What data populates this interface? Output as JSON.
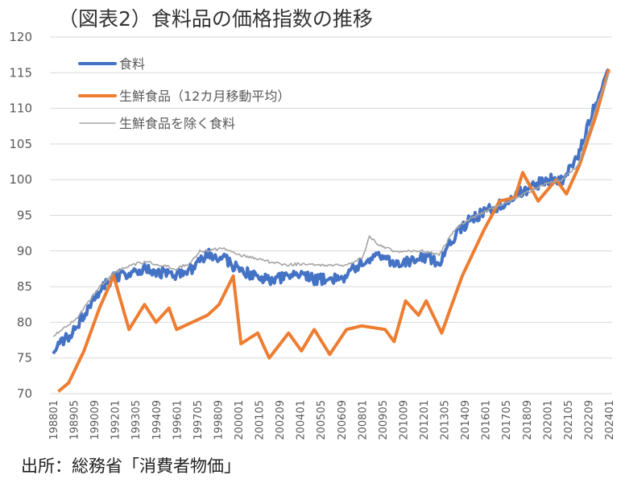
{
  "title": "（図表2）食料品の価格指数の推移",
  "source": "出所：総務省「消費者物価」",
  "chart_data": {
    "type": "line",
    "title": "（図表2）食料品の価格指数の推移",
    "ylim": [
      70,
      120
    ],
    "yticks": [
      70,
      75,
      80,
      85,
      90,
      95,
      100,
      105,
      110,
      115,
      120
    ],
    "xticks": [
      "198801",
      "198905",
      "199009",
      "199201",
      "199305",
      "199409",
      "199601",
      "199705",
      "199809",
      "200001",
      "200105",
      "200209",
      "200401",
      "200505",
      "200609",
      "200801",
      "200905",
      "201009",
      "201201",
      "201305",
      "201409",
      "201601",
      "201705",
      "201809",
      "202001",
      "202105",
      "202209",
      "202401"
    ],
    "xrange": [
      "198801",
      "202402"
    ],
    "grid": true,
    "legend": "top-left",
    "series": [
      {
        "name": "食料",
        "color": "#4472C4",
        "points": [
          [
            "198801",
            76
          ],
          [
            "198901",
            78
          ],
          [
            "199001",
            81
          ],
          [
            "199101",
            84.5
          ],
          [
            "199201",
            86.5
          ],
          [
            "199301",
            87
          ],
          [
            "199401",
            87.5
          ],
          [
            "199501",
            87
          ],
          [
            "199601",
            86.5
          ],
          [
            "199701",
            87.5
          ],
          [
            "199801",
            89.5
          ],
          [
            "199901",
            89
          ],
          [
            "200001",
            87.5
          ],
          [
            "200101",
            86.5
          ],
          [
            "200201",
            86
          ],
          [
            "200301",
            86.2
          ],
          [
            "200401",
            86.5
          ],
          [
            "200501",
            86
          ],
          [
            "200601",
            86
          ],
          [
            "200701",
            86.5
          ],
          [
            "200801",
            88.5
          ],
          [
            "200901",
            89.5
          ],
          [
            "201001",
            88.5
          ],
          [
            "201101",
            88.5
          ],
          [
            "201201",
            89
          ],
          [
            "201301",
            88.5
          ],
          [
            "201401",
            92
          ],
          [
            "201501",
            94.5
          ],
          [
            "201601",
            95.5
          ],
          [
            "201701",
            96.5
          ],
          [
            "201801",
            98
          ],
          [
            "201901",
            99
          ],
          [
            "202001",
            100
          ],
          [
            "202101",
            100
          ],
          [
            "202201",
            103
          ],
          [
            "202301",
            110
          ],
          [
            "202401",
            115.5
          ]
        ]
      },
      {
        "name": "生鮮食品（12カ月移動平均）",
        "color": "#ED7D31",
        "points": [
          [
            "198805",
            70.3
          ],
          [
            "198901",
            71.5
          ],
          [
            "199001",
            76
          ],
          [
            "199101",
            82
          ],
          [
            "199112",
            86.5
          ],
          [
            "199212",
            79
          ],
          [
            "199312",
            82.5
          ],
          [
            "199409",
            80
          ],
          [
            "199507",
            82
          ],
          [
            "199601",
            79
          ],
          [
            "199701",
            80
          ],
          [
            "199801",
            81
          ],
          [
            "199810",
            82.5
          ],
          [
            "199909",
            86.5
          ],
          [
            "200003",
            77
          ],
          [
            "200104",
            78.5
          ],
          [
            "200201",
            75
          ],
          [
            "200304",
            78.5
          ],
          [
            "200402",
            76
          ],
          [
            "200412",
            79
          ],
          [
            "200512",
            75.5
          ],
          [
            "200701",
            79
          ],
          [
            "200801",
            79.5
          ],
          [
            "200907",
            79
          ],
          [
            "201002",
            77.3
          ],
          [
            "201011",
            83
          ],
          [
            "201109",
            81
          ],
          [
            "201203",
            83
          ],
          [
            "201303",
            78.5
          ],
          [
            "201407",
            86.5
          ],
          [
            "201512",
            93
          ],
          [
            "201612",
            97
          ],
          [
            "201712",
            97.5
          ],
          [
            "201806",
            101
          ],
          [
            "201906",
            97
          ],
          [
            "202008",
            100
          ],
          [
            "202104",
            98
          ],
          [
            "202202",
            102
          ],
          [
            "202303",
            109
          ],
          [
            "202401",
            115.5
          ]
        ]
      },
      {
        "name": "生鮮食品を除く食料",
        "color": "#A5A5A5",
        "points": [
          [
            "198801",
            78
          ],
          [
            "198907",
            80.5
          ],
          [
            "199001",
            82
          ],
          [
            "199101",
            85
          ],
          [
            "199201",
            87
          ],
          [
            "199301",
            88
          ],
          [
            "199401",
            88.5
          ],
          [
            "199501",
            88
          ],
          [
            "199601",
            87.5
          ],
          [
            "199701",
            88.5
          ],
          [
            "199707",
            90
          ],
          [
            "199801",
            90
          ],
          [
            "199901",
            90.5
          ],
          [
            "200001",
            89.5
          ],
          [
            "200101",
            89
          ],
          [
            "200201",
            88.5
          ],
          [
            "200301",
            88
          ],
          [
            "200401",
            88.2
          ],
          [
            "200501",
            88
          ],
          [
            "200601",
            88
          ],
          [
            "200701",
            88
          ],
          [
            "200801",
            89
          ],
          [
            "200807",
            92
          ],
          [
            "200901",
            91
          ],
          [
            "201001",
            90
          ],
          [
            "201101",
            90
          ],
          [
            "201201",
            90
          ],
          [
            "201301",
            89.5
          ],
          [
            "201401",
            93
          ],
          [
            "201501",
            94.5
          ],
          [
            "201601",
            95.5
          ],
          [
            "201701",
            96.5
          ],
          [
            "201801",
            97.5
          ],
          [
            "201901",
            98.5
          ],
          [
            "202001",
            99.5
          ],
          [
            "202101",
            100
          ],
          [
            "202201",
            102
          ],
          [
            "202301",
            109
          ],
          [
            "202401",
            115
          ]
        ]
      }
    ]
  }
}
